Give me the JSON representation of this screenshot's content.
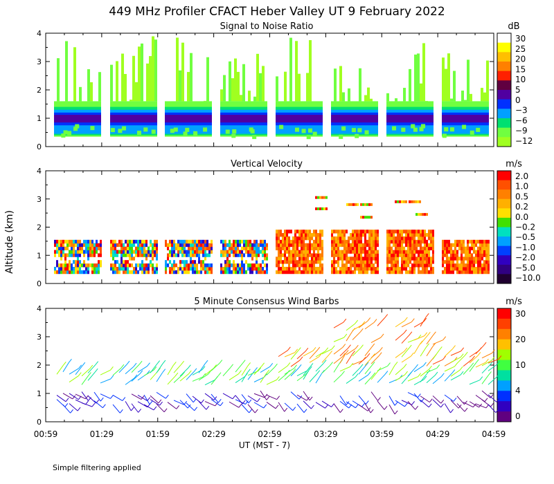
{
  "title": "449 MHz Profiler CFACT Heber Valley UT  9 February 2022",
  "footer_note": "Simple filtering applied",
  "y_axis_label": "Altitude (km)",
  "x_axis_label": "UT  (MST - 7)",
  "chart_data": [
    {
      "type": "heatmap",
      "title": "Signal to Noise Ratio",
      "x": [
        "00:59",
        "01:29",
        "01:59",
        "02:29",
        "02:59",
        "03:29",
        "03:59",
        "04:29",
        "04:59"
      ],
      "ylim": [
        0,
        4
      ],
      "yticks": [
        "0",
        "1",
        "2",
        "3",
        "4"
      ],
      "colorbar": {
        "unit": "dB",
        "labels": [
          "30",
          "25",
          "20",
          "15",
          "10",
          "5",
          "0",
          "−3",
          "−6",
          "−9",
          "−12"
        ],
        "colors": [
          "#ffffff",
          "#ffff00",
          "#ffbf00",
          "#ff8000",
          "#ff2000",
          "#600040",
          "#5000a0",
          "#0030ff",
          "#00a0ff",
          "#00e070",
          "#70ff40",
          "#a0ff20"
        ]
      }
    },
    {
      "type": "heatmap",
      "title": "Vertical Velocity",
      "ylim": [
        0,
        4
      ],
      "yticks": [
        "0",
        "1",
        "2",
        "3",
        "4"
      ],
      "colorbar": {
        "unit": "m/s",
        "labels": [
          "2.0",
          "1.0",
          "0.5",
          "0.2",
          "0.0",
          "−0.2",
          "−0.5",
          "−1.0",
          "−2.0",
          "−5.0",
          "−10.0"
        ],
        "colors": [
          "#ff0000",
          "#ff5000",
          "#ff8000",
          "#ffb000",
          "#ffe000",
          "#40e000",
          "#00e0c0",
          "#00a0ff",
          "#0040ff",
          "#3000c0",
          "#300080",
          "#200030"
        ]
      }
    },
    {
      "type": "scatter",
      "title": "5 Minute Consensus Wind Barbs",
      "ylim": [
        0,
        4
      ],
      "yticks": [
        "0",
        "1",
        "2",
        "3",
        "4"
      ],
      "colorbar": {
        "unit": "m/s",
        "labels": [
          "30",
          "20",
          "10",
          "4",
          "0"
        ],
        "colors": [
          "#ff0000",
          "#ff4000",
          "#ff8000",
          "#ffc000",
          "#a0ff00",
          "#40ff40",
          "#00e0a0",
          "#00a0ff",
          "#0030ff",
          "#3000c0",
          "#600080"
        ]
      }
    }
  ]
}
